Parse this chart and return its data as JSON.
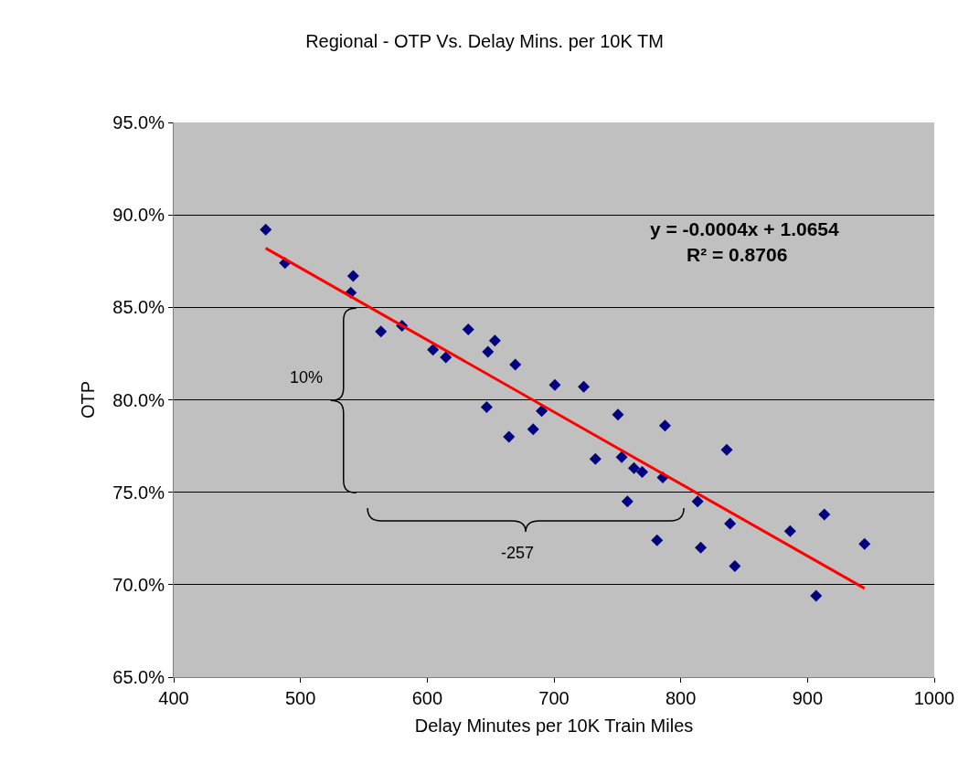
{
  "chart_data": {
    "type": "scatter",
    "title": "Regional - OTP Vs. Delay Mins. per 10K TM",
    "xlabel": "Delay Minutes per 10K Train Miles",
    "ylabel": "OTP",
    "xlim": [
      400,
      1000
    ],
    "xticks": [
      400,
      500,
      600,
      700,
      800,
      900,
      1000
    ],
    "ylim": [
      65,
      95
    ],
    "yticks": [
      {
        "value": 65,
        "label": "65.0%"
      },
      {
        "value": 70,
        "label": "70.0%"
      },
      {
        "value": 75,
        "label": "75.0%"
      },
      {
        "value": 80,
        "label": "80.0%"
      },
      {
        "value": 85,
        "label": "85.0%"
      },
      {
        "value": 90,
        "label": "90.0%"
      },
      {
        "value": 95,
        "label": "95.0%"
      }
    ],
    "grid": "y",
    "marker": "diamond",
    "series": [
      {
        "color": "#000080",
        "x": [
          472.6,
          487.8,
          541.6,
          539.7,
          563.5,
          580.1,
          604.6,
          614.7,
          632.4,
          647.9,
          653.4,
          669.5,
          700.7,
          723.5,
          646.9,
          690.3,
          683.6,
          664.5,
          750.5,
          787.6,
          732.7,
          753.4,
          763.1,
          769.6,
          785.8,
          836.3,
          757.9,
          813.3,
          838.9,
          781.3,
          815.8,
          842.7,
          913.3,
          886.3,
          945.0,
          906.8
        ],
        "values": [
          89.2,
          87.4,
          86.7,
          85.8,
          83.7,
          84.0,
          82.7,
          82.3,
          83.8,
          82.6,
          83.2,
          81.9,
          80.8,
          80.7,
          79.6,
          79.4,
          78.4,
          78.0,
          79.2,
          78.6,
          76.8,
          76.9,
          76.3,
          76.1,
          75.8,
          77.3,
          74.5,
          74.5,
          73.3,
          72.4,
          72.0,
          71.0,
          73.8,
          72.9,
          72.2,
          69.4
        ]
      },
      {
        "type": "line",
        "color": "#ff0000",
        "marker": "none",
        "x": [
          472.6,
          945.0
        ],
        "values": [
          88.2,
          69.8
        ]
      }
    ],
    "annotations": [
      "y = -0.0004x + 1.0654",
      "R² = 0.8706",
      "10%",
      "-257"
    ]
  }
}
